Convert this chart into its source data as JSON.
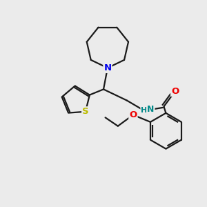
{
  "bg_color": "#ebebeb",
  "bond_color": "#1a1a1a",
  "N_color": "#0000ee",
  "S_color": "#bbbb00",
  "O_color": "#ee0000",
  "NH_color": "#008888",
  "line_width": 1.6,
  "fig_width": 3.0,
  "fig_height": 3.0,
  "dpi": 100,
  "xlim": [
    0,
    10
  ],
  "ylim": [
    0,
    10
  ]
}
